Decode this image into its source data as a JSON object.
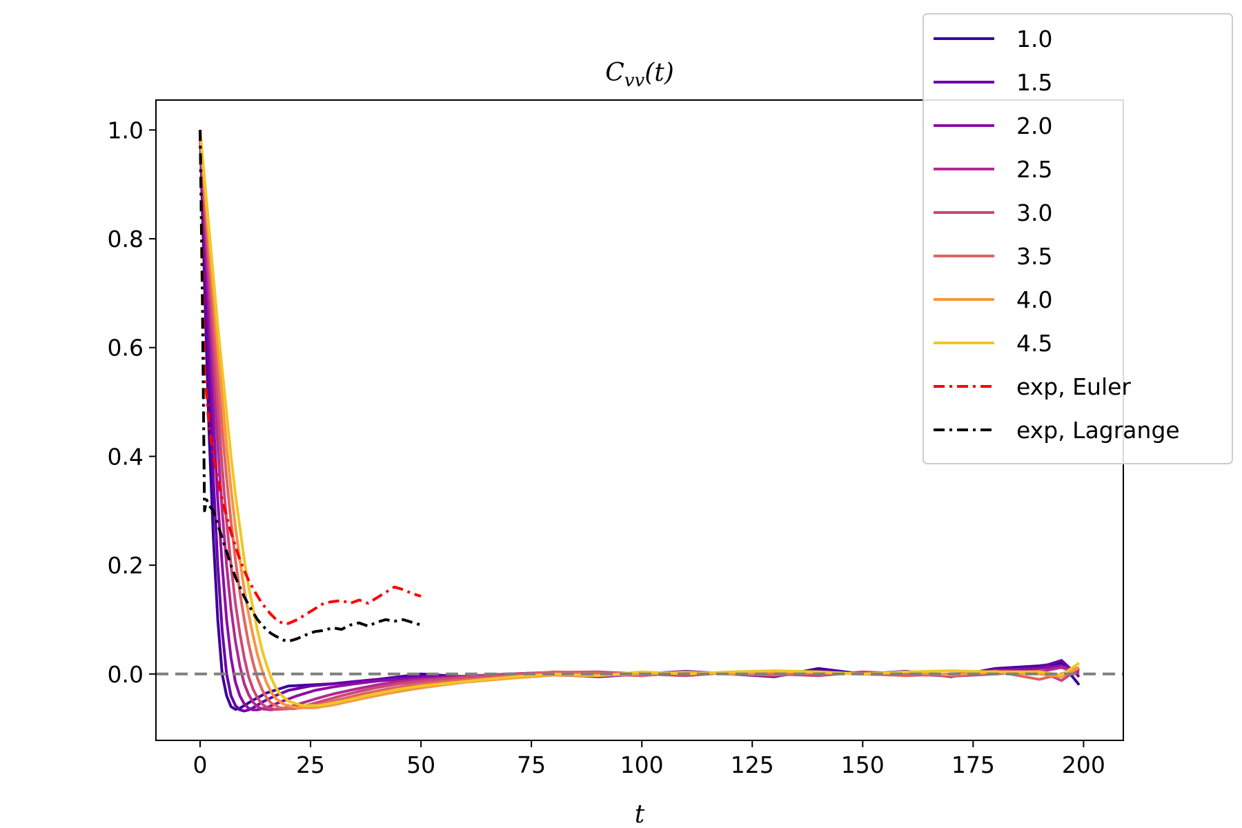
{
  "chart_data": {
    "type": "line",
    "title": "C_vv(t)",
    "title_parts": {
      "main": "C",
      "sub": "vv",
      "suffix": "(t)"
    },
    "xlabel": "t",
    "ylabel": "",
    "xlim": [
      -10,
      209
    ],
    "ylim": [
      -0.122,
      1.055
    ],
    "xticks": [
      0,
      25,
      50,
      75,
      100,
      125,
      150,
      175,
      200
    ],
    "xtick_labels": [
      "0",
      "25",
      "50",
      "75",
      "100",
      "125",
      "150",
      "175",
      "200"
    ],
    "yticks": [
      0.0,
      0.2,
      0.4,
      0.6,
      0.8,
      1.0
    ],
    "ytick_labels": [
      "0.0",
      "0.2",
      "0.4",
      "0.6",
      "0.8",
      "1.0"
    ],
    "reference_line": {
      "y": 0.0,
      "color": "#808080",
      "style": "dashed"
    },
    "legend_position": "top-right",
    "grid": false,
    "series": [
      {
        "name": "1.0",
        "color": "#3a049a",
        "style": "solid",
        "x": [
          0,
          1,
          2,
          3,
          4,
          5,
          6,
          7,
          8,
          9,
          10,
          12,
          15,
          20,
          25,
          30,
          35,
          40,
          45,
          50,
          60,
          70,
          80,
          90,
          100,
          110,
          120,
          130,
          140,
          150,
          160,
          170,
          180,
          190,
          195,
          199
        ],
        "y": [
          1.0,
          0.72,
          0.45,
          0.25,
          0.1,
          0.0,
          -0.04,
          -0.06,
          -0.065,
          -0.063,
          -0.058,
          -0.048,
          -0.035,
          -0.022,
          -0.02,
          -0.018,
          -0.014,
          -0.01,
          -0.005,
          0.0,
          -0.005,
          -0.002,
          0.0,
          -0.005,
          0.0,
          0.005,
          0.0,
          -0.005,
          0.01,
          0.0,
          0.005,
          -0.005,
          0.01,
          0.015,
          0.02,
          -0.02
        ]
      },
      {
        "name": "1.5",
        "color": "#6a00a8",
        "style": "solid",
        "x": [
          0,
          1,
          2,
          3,
          4,
          5,
          6,
          7,
          8,
          9,
          10,
          11,
          12,
          14,
          17,
          20,
          25,
          30,
          35,
          40,
          45,
          50,
          60,
          70,
          80,
          90,
          100,
          110,
          120,
          130,
          140,
          150,
          160,
          170,
          180,
          190,
          195,
          199
        ],
        "y": [
          1.0,
          0.78,
          0.56,
          0.36,
          0.2,
          0.08,
          0.0,
          -0.04,
          -0.058,
          -0.066,
          -0.068,
          -0.066,
          -0.062,
          -0.052,
          -0.04,
          -0.03,
          -0.022,
          -0.018,
          -0.014,
          -0.01,
          -0.007,
          -0.004,
          -0.005,
          0.0,
          0.0,
          -0.004,
          0.0,
          0.004,
          0.0,
          -0.004,
          0.006,
          0.0,
          0.004,
          -0.004,
          0.008,
          0.012,
          0.025,
          -0.005
        ]
      },
      {
        "name": "2.0",
        "color": "#8f0da4",
        "style": "solid",
        "x": [
          0,
          1,
          2,
          3,
          4,
          5,
          6,
          7,
          8,
          9,
          10,
          11,
          12,
          13,
          15,
          18,
          22,
          26,
          30,
          35,
          40,
          45,
          50,
          60,
          70,
          80,
          90,
          100,
          110,
          120,
          130,
          140,
          150,
          160,
          170,
          180,
          190,
          195,
          199
        ],
        "y": [
          1.0,
          0.82,
          0.64,
          0.47,
          0.32,
          0.2,
          0.1,
          0.03,
          -0.015,
          -0.04,
          -0.055,
          -0.063,
          -0.066,
          -0.066,
          -0.062,
          -0.052,
          -0.04,
          -0.03,
          -0.024,
          -0.018,
          -0.013,
          -0.01,
          -0.007,
          -0.004,
          0.0,
          -0.002,
          -0.004,
          0.0,
          0.003,
          0.0,
          -0.003,
          0.004,
          0.0,
          0.003,
          -0.004,
          0.006,
          0.01,
          0.015,
          0.005
        ]
      },
      {
        "name": "2.5",
        "color": "#b12a90",
        "style": "solid",
        "x": [
          0,
          1,
          2,
          3,
          4,
          5,
          6,
          7,
          8,
          9,
          10,
          11,
          12,
          13,
          14,
          16,
          19,
          22,
          26,
          30,
          35,
          40,
          45,
          50,
          60,
          70,
          80,
          90,
          100,
          110,
          120,
          130,
          140,
          150,
          160,
          170,
          180,
          190,
          195,
          199
        ],
        "y": [
          1.0,
          0.85,
          0.7,
          0.55,
          0.42,
          0.3,
          0.2,
          0.12,
          0.06,
          0.015,
          -0.018,
          -0.038,
          -0.052,
          -0.06,
          -0.064,
          -0.066,
          -0.063,
          -0.056,
          -0.046,
          -0.037,
          -0.028,
          -0.02,
          -0.014,
          -0.01,
          -0.005,
          0.0,
          0.003,
          0.0,
          -0.003,
          0.003,
          0.0,
          -0.003,
          0.004,
          0.0,
          0.003,
          -0.004,
          0.006,
          0.004,
          0.012,
          0.0
        ]
      },
      {
        "name": "3.0",
        "color": "#cc4778",
        "style": "solid",
        "x": [
          0,
          1,
          2,
          3,
          4,
          5,
          6,
          7,
          8,
          9,
          10,
          11,
          12,
          13,
          14,
          15,
          17,
          20,
          24,
          28,
          32,
          36,
          40,
          45,
          50,
          60,
          70,
          80,
          90,
          100,
          110,
          120,
          130,
          140,
          150,
          160,
          170,
          180,
          190,
          195,
          199
        ],
        "y": [
          1.0,
          0.87,
          0.74,
          0.61,
          0.49,
          0.38,
          0.28,
          0.2,
          0.13,
          0.075,
          0.03,
          -0.005,
          -0.028,
          -0.044,
          -0.055,
          -0.061,
          -0.065,
          -0.064,
          -0.058,
          -0.049,
          -0.04,
          -0.032,
          -0.025,
          -0.018,
          -0.013,
          -0.006,
          0.0,
          0.003,
          0.004,
          0.0,
          -0.003,
          0.003,
          0.0,
          -0.003,
          0.004,
          0.0,
          -0.004,
          0.0,
          0.006,
          -0.012,
          0.01
        ]
      },
      {
        "name": "3.5",
        "color": "#e16462",
        "style": "solid",
        "x": [
          0,
          1,
          2,
          3,
          4,
          5,
          6,
          7,
          8,
          9,
          10,
          11,
          12,
          13,
          14,
          15,
          16,
          18,
          21,
          25,
          29,
          33,
          37,
          42,
          47,
          52,
          60,
          70,
          80,
          90,
          100,
          110,
          120,
          130,
          140,
          150,
          160,
          170,
          180,
          190,
          195,
          199
        ],
        "y": [
          1.0,
          0.89,
          0.77,
          0.66,
          0.55,
          0.45,
          0.36,
          0.28,
          0.21,
          0.15,
          0.1,
          0.055,
          0.02,
          -0.008,
          -0.028,
          -0.043,
          -0.053,
          -0.062,
          -0.064,
          -0.06,
          -0.052,
          -0.044,
          -0.036,
          -0.028,
          -0.021,
          -0.016,
          -0.01,
          -0.004,
          0.004,
          0.002,
          -0.003,
          0.003,
          0.0,
          -0.002,
          0.003,
          0.0,
          -0.003,
          0.0,
          0.005,
          -0.01,
          0.0,
          0.012
        ]
      },
      {
        "name": "4.0",
        "color": "#f89540",
        "style": "solid",
        "x": [
          0,
          1,
          2,
          3,
          4,
          5,
          6,
          7,
          8,
          9,
          10,
          11,
          12,
          13,
          14,
          15,
          16,
          17,
          19,
          22,
          26,
          30,
          34,
          38,
          43,
          48,
          54,
          60,
          70,
          80,
          90,
          100,
          110,
          120,
          130,
          140,
          150,
          160,
          170,
          180,
          190,
          195,
          199
        ],
        "y": [
          1.0,
          0.9,
          0.8,
          0.7,
          0.6,
          0.51,
          0.42,
          0.34,
          0.27,
          0.21,
          0.155,
          0.11,
          0.07,
          0.035,
          0.008,
          -0.015,
          -0.032,
          -0.044,
          -0.056,
          -0.062,
          -0.062,
          -0.057,
          -0.05,
          -0.043,
          -0.035,
          -0.028,
          -0.021,
          -0.015,
          -0.008,
          -0.002,
          -0.003,
          0.0,
          0.004,
          0.0,
          0.004,
          0.002,
          0.0,
          0.004,
          -0.002,
          0.003,
          0.0,
          -0.005,
          0.012
        ]
      },
      {
        "name": "4.5",
        "color": "#f0c724",
        "style": "solid",
        "x": [
          0,
          1,
          2,
          3,
          4,
          5,
          6,
          7,
          8,
          9,
          10,
          11,
          12,
          13,
          14,
          15,
          16,
          17,
          18,
          20,
          23,
          27,
          31,
          35,
          40,
          45,
          50,
          56,
          62,
          70,
          80,
          90,
          100,
          110,
          120,
          130,
          140,
          150,
          160,
          170,
          180,
          190,
          195,
          199
        ],
        "y": [
          1.0,
          0.91,
          0.82,
          0.73,
          0.64,
          0.56,
          0.48,
          0.4,
          0.33,
          0.27,
          0.21,
          0.16,
          0.12,
          0.08,
          0.045,
          0.018,
          -0.005,
          -0.023,
          -0.036,
          -0.05,
          -0.058,
          -0.058,
          -0.052,
          -0.045,
          -0.036,
          -0.028,
          -0.022,
          -0.017,
          -0.012,
          -0.006,
          0.0,
          -0.003,
          0.004,
          0.0,
          0.004,
          0.006,
          0.004,
          0.0,
          0.004,
          0.006,
          0.004,
          0.004,
          -0.002,
          0.02
        ]
      },
      {
        "name": "exp, Euler",
        "color": "#ff0000",
        "style": "dashdot",
        "x": [
          0,
          1,
          2,
          3,
          4,
          5,
          6,
          7,
          8,
          9,
          10,
          11,
          12,
          13,
          14,
          15,
          16,
          17,
          18,
          19,
          20,
          22,
          24,
          26,
          28,
          30,
          32,
          34,
          36,
          38,
          40,
          42,
          44,
          46,
          48,
          50
        ],
        "y": [
          1.0,
          0.56,
          0.46,
          0.4,
          0.36,
          0.32,
          0.29,
          0.26,
          0.235,
          0.21,
          0.19,
          0.172,
          0.157,
          0.143,
          0.13,
          0.12,
          0.11,
          0.102,
          0.096,
          0.092,
          0.093,
          0.1,
          0.11,
          0.12,
          0.13,
          0.133,
          0.135,
          0.13,
          0.136,
          0.13,
          0.14,
          0.15,
          0.16,
          0.155,
          0.148,
          0.143
        ]
      },
      {
        "name": "exp, Lagrange",
        "color": "#000000",
        "style": "dashdot",
        "x": [
          0,
          0.5,
          1,
          1.5,
          2,
          3,
          4,
          5,
          6,
          7,
          8,
          9,
          10,
          11,
          12,
          13,
          14,
          15,
          16,
          17,
          18,
          19,
          20,
          22,
          24,
          26,
          28,
          30,
          32,
          34,
          36,
          38,
          40,
          42,
          44,
          46,
          48,
          50
        ],
        "y": [
          1.0,
          0.7,
          0.3,
          0.32,
          0.31,
          0.3,
          0.275,
          0.25,
          0.225,
          0.2,
          0.178,
          0.16,
          0.142,
          0.127,
          0.113,
          0.1,
          0.09,
          0.082,
          0.075,
          0.07,
          0.066,
          0.062,
          0.06,
          0.065,
          0.072,
          0.078,
          0.08,
          0.085,
          0.082,
          0.09,
          0.094,
          0.088,
          0.095,
          0.1,
          0.097,
          0.1,
          0.095,
          0.09
        ]
      }
    ]
  }
}
